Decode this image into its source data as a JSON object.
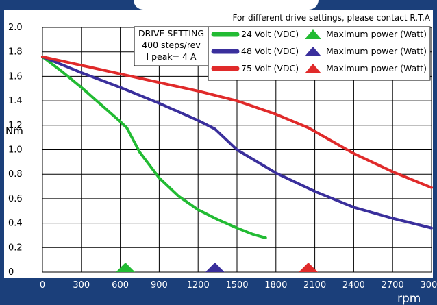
{
  "header_note": "For different drive settings, please contact R.T.A",
  "drive_setting": {
    "title": "DRIVE SETTING",
    "steps": "400 steps/rev",
    "current": "I peak= 4 A"
  },
  "colors": {
    "background": "#1b3f7a",
    "grid": "#000000",
    "series_24v": "#22bb33",
    "series_48v": "#3a2f9c",
    "series_75v": "#e02a2a"
  },
  "chart_data": {
    "type": "line",
    "xlabel": "rpm",
    "ylabel": "Nm",
    "xlim": [
      0,
      3000
    ],
    "ylim": [
      0,
      2.0
    ],
    "x_ticks": [
      "0",
      "300",
      "600",
      "900",
      "1200",
      "1500",
      "1800",
      "2100",
      "2400",
      "2700",
      "3000"
    ],
    "y_ticks": [
      "0",
      "0.2",
      "0.4",
      "0.6",
      "0.8",
      "1.0",
      "1.2",
      "1.4",
      "1.6",
      "1.8",
      "2.0"
    ],
    "grid": true,
    "legend_position": "top-right",
    "series": [
      {
        "name": "24 Volt (VDC)",
        "marker_label": "Maximum power (Watt)",
        "max_power_rpm": 640,
        "x": [
          0,
          150,
          300,
          450,
          600,
          650,
          750,
          900,
          1050,
          1200,
          1350,
          1500,
          1620,
          1720
        ],
        "y": [
          1.76,
          1.64,
          1.51,
          1.37,
          1.23,
          1.18,
          0.98,
          0.77,
          0.62,
          0.51,
          0.43,
          0.36,
          0.31,
          0.28
        ]
      },
      {
        "name": "48 Volt (VDC)",
        "marker_label": "Maximum power (Watt)",
        "max_power_rpm": 1330,
        "x": [
          0,
          300,
          600,
          900,
          1200,
          1330,
          1500,
          1800,
          2100,
          2400,
          2700,
          3000
        ],
        "y": [
          1.76,
          1.63,
          1.51,
          1.38,
          1.24,
          1.17,
          1.0,
          0.81,
          0.66,
          0.53,
          0.44,
          0.36
        ]
      },
      {
        "name": "75 Volt (VDC)",
        "marker_label": "Maximum power (Watt)",
        "max_power_rpm": 2050,
        "x": [
          0,
          300,
          600,
          900,
          1200,
          1500,
          1800,
          2050,
          2100,
          2400,
          2700,
          3000
        ],
        "y": [
          1.76,
          1.69,
          1.62,
          1.55,
          1.48,
          1.4,
          1.29,
          1.18,
          1.15,
          0.97,
          0.82,
          0.69
        ]
      }
    ]
  }
}
